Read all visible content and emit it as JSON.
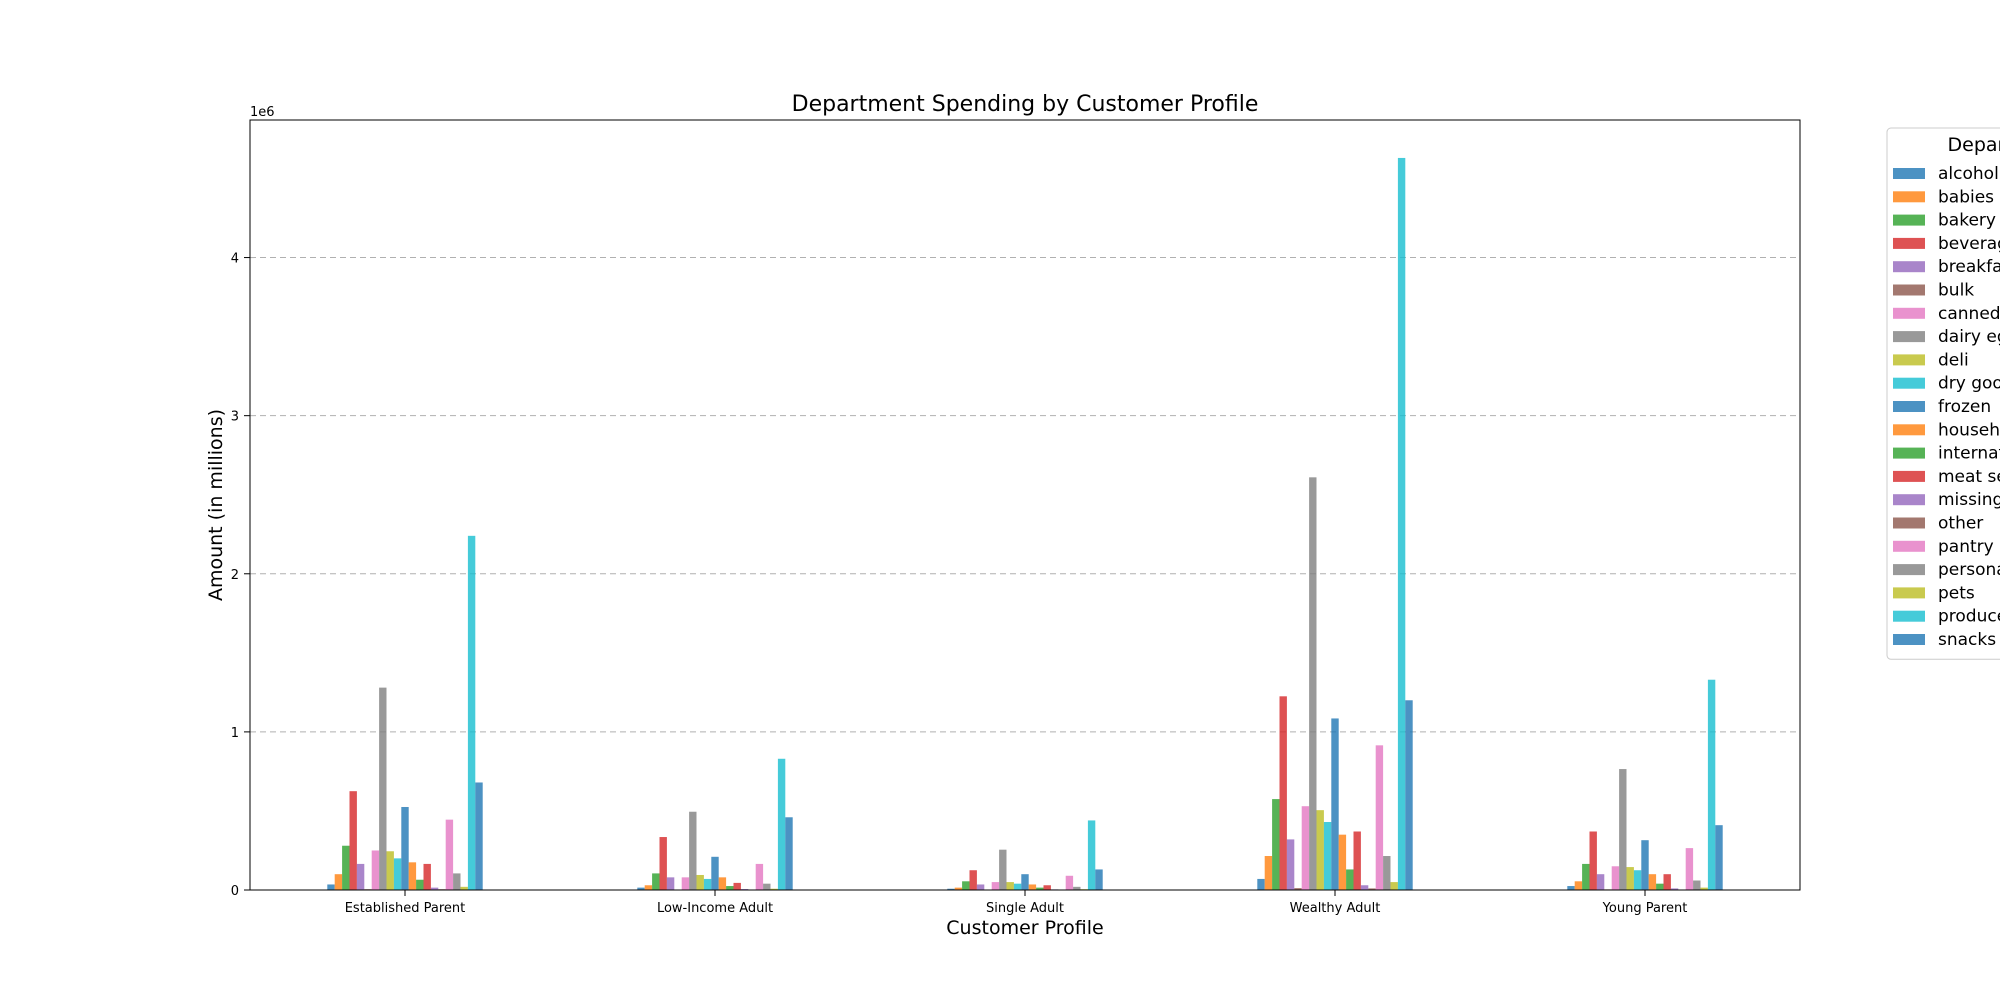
{
  "chart_data": {
    "type": "bar",
    "title": "Department Spending by Customer Profile",
    "xlabel": "Customer Profile",
    "ylabel": "Amount (in millions)",
    "offset_text": "1e6",
    "ylim": [
      0,
      4870000
    ],
    "yticks": [
      0,
      1000000,
      2000000,
      3000000,
      4000000
    ],
    "ytick_labels": [
      "0",
      "1",
      "2",
      "3",
      "4"
    ],
    "grid": "horizontal dashed",
    "legend_title": "Department",
    "legend_placement": "outside right",
    "categories": [
      "Established Parent",
      "Low-Income Adult",
      "Single Adult",
      "Wealthy Adult",
      "Young Parent"
    ],
    "series": [
      {
        "name": "alcohol",
        "color": "#1f77b4",
        "values": [
          35000,
          15000,
          8000,
          70000,
          25000
        ]
      },
      {
        "name": "babies",
        "color": "#ff7f0e",
        "values": [
          100000,
          30000,
          15000,
          215000,
          55000
        ]
      },
      {
        "name": "bakery",
        "color": "#2ca02c",
        "values": [
          280000,
          105000,
          55000,
          575000,
          165000
        ]
      },
      {
        "name": "beverages",
        "color": "#d62728",
        "values": [
          625000,
          335000,
          125000,
          1225000,
          370000
        ]
      },
      {
        "name": "breakfast",
        "color": "#9467bd",
        "values": [
          165000,
          80000,
          35000,
          320000,
          100000
        ]
      },
      {
        "name": "bulk",
        "color": "#8c564b",
        "values": [
          5000,
          3000,
          2000,
          12000,
          4000
        ]
      },
      {
        "name": "canned goods",
        "color": "#e377c2",
        "values": [
          250000,
          80000,
          50000,
          530000,
          150000
        ]
      },
      {
        "name": "dairy eggs",
        "color": "#7f7f7f",
        "values": [
          1280000,
          495000,
          255000,
          2610000,
          765000
        ]
      },
      {
        "name": "deli",
        "color": "#bcbd22",
        "values": [
          245000,
          95000,
          50000,
          505000,
          145000
        ]
      },
      {
        "name": "dry goods pasta",
        "color": "#17becf",
        "values": [
          200000,
          70000,
          40000,
          430000,
          125000
        ]
      },
      {
        "name": "frozen",
        "color": "#1f77b4",
        "values": [
          525000,
          210000,
          100000,
          1085000,
          315000
        ]
      },
      {
        "name": "household",
        "color": "#ff7f0e",
        "values": [
          175000,
          80000,
          35000,
          350000,
          100000
        ]
      },
      {
        "name": "international",
        "color": "#2ca02c",
        "values": [
          65000,
          25000,
          15000,
          130000,
          40000
        ]
      },
      {
        "name": "meat seafood",
        "color": "#d62728",
        "values": [
          165000,
          45000,
          30000,
          370000,
          100000
        ]
      },
      {
        "name": "missing",
        "color": "#9467bd",
        "values": [
          15000,
          6000,
          4000,
          30000,
          10000
        ]
      },
      {
        "name": "other",
        "color": "#8c564b",
        "values": [
          5000,
          2000,
          1000,
          10000,
          3000
        ]
      },
      {
        "name": "pantry",
        "color": "#e377c2",
        "values": [
          445000,
          165000,
          90000,
          915000,
          265000
        ]
      },
      {
        "name": "personal care",
        "color": "#7f7f7f",
        "values": [
          105000,
          40000,
          20000,
          215000,
          60000
        ]
      },
      {
        "name": "pets",
        "color": "#bcbd22",
        "values": [
          20000,
          8000,
          5000,
          50000,
          15000
        ]
      },
      {
        "name": "produce",
        "color": "#17becf",
        "values": [
          2240000,
          830000,
          440000,
          4630000,
          1330000
        ]
      },
      {
        "name": "snacks",
        "color": "#1f77b4",
        "values": [
          680000,
          460000,
          130000,
          1200000,
          410000
        ]
      }
    ]
  }
}
